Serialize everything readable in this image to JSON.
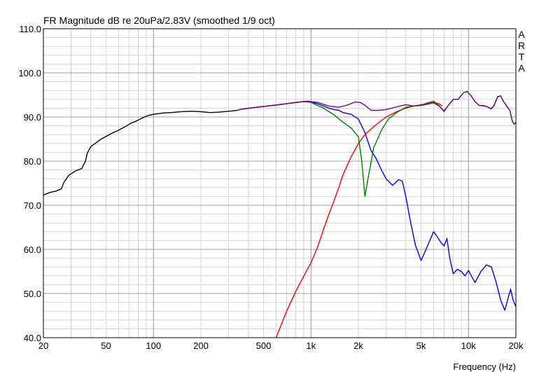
{
  "chart_data": {
    "type": "line",
    "title": "FR Magnitude dB re 20uPa/2.83V (smoothed 1/9 oct)",
    "watermark": [
      "A",
      "R",
      "T",
      "A"
    ],
    "xlabel": "Frequency (Hz)",
    "ylabel": "",
    "x_scale": "log",
    "xlim": [
      20,
      20000
    ],
    "ylim": [
      40,
      110
    ],
    "grid": true,
    "x_ticks": [
      {
        "value": 20,
        "label": "20"
      },
      {
        "value": 50,
        "label": "50"
      },
      {
        "value": 100,
        "label": "100"
      },
      {
        "value": 200,
        "label": "200"
      },
      {
        "value": 500,
        "label": "500"
      },
      {
        "value": 1000,
        "label": "1k"
      },
      {
        "value": 2000,
        "label": "2k"
      },
      {
        "value": 5000,
        "label": "5k"
      },
      {
        "value": 10000,
        "label": "10k"
      },
      {
        "value": 20000,
        "label": "20k"
      }
    ],
    "y_ticks": [
      {
        "value": 40,
        "label": "40.0"
      },
      {
        "value": 50,
        "label": "50.0"
      },
      {
        "value": 60,
        "label": "60.0"
      },
      {
        "value": 70,
        "label": "70.0"
      },
      {
        "value": 80,
        "label": "80.0"
      },
      {
        "value": 90,
        "label": "90.0"
      },
      {
        "value": 100,
        "label": "100.0"
      },
      {
        "value": 110,
        "label": "110.0"
      }
    ],
    "series": [
      {
        "color": "#000000",
        "points": [
          [
            20,
            72.3
          ],
          [
            22,
            72.9
          ],
          [
            24,
            73.2
          ],
          [
            26,
            73.7
          ],
          [
            27,
            75.2
          ],
          [
            29,
            76.8
          ],
          [
            32,
            77.8
          ],
          [
            35,
            78.3
          ],
          [
            37,
            80.0
          ],
          [
            38,
            81.8
          ],
          [
            40,
            83.3
          ],
          [
            43,
            84.1
          ],
          [
            46,
            84.9
          ],
          [
            50,
            85.6
          ],
          [
            55,
            86.4
          ],
          [
            60,
            87.0
          ],
          [
            66,
            87.8
          ],
          [
            72,
            88.6
          ],
          [
            78,
            89.1
          ],
          [
            85,
            89.8
          ],
          [
            92,
            90.3
          ],
          [
            100,
            90.6
          ],
          [
            115,
            90.9
          ],
          [
            130,
            91.0
          ],
          [
            150,
            91.2
          ],
          [
            175,
            91.3
          ],
          [
            200,
            91.2
          ],
          [
            230,
            91.0
          ],
          [
            260,
            91.1
          ],
          [
            300,
            91.3
          ],
          [
            340,
            91.5
          ],
          [
            350,
            91.6
          ]
        ]
      },
      {
        "color": "#0000ff",
        "points": [
          [
            350,
            91.7
          ],
          [
            400,
            92.0
          ],
          [
            500,
            92.4
          ],
          [
            600,
            92.7
          ],
          [
            700,
            93.0
          ],
          [
            800,
            93.3
          ],
          [
            900,
            93.5
          ],
          [
            1000,
            93.4
          ],
          [
            1100,
            93.0
          ],
          [
            1200,
            92.5
          ],
          [
            1300,
            92.0
          ],
          [
            1400,
            91.7
          ],
          [
            1500,
            91.5
          ],
          [
            1600,
            91.0
          ],
          [
            1800,
            90.6
          ],
          [
            2000,
            89.5
          ],
          [
            2200,
            86.5
          ],
          [
            2400,
            82.5
          ],
          [
            2600,
            80.5
          ],
          [
            2800,
            78.0
          ],
          [
            3000,
            76.0
          ],
          [
            3300,
            74.5
          ],
          [
            3600,
            75.8
          ],
          [
            3800,
            75.5
          ],
          [
            4000,
            72.0
          ],
          [
            4300,
            66.0
          ],
          [
            4600,
            61.0
          ],
          [
            5000,
            57.5
          ],
          [
            5300,
            59.5
          ],
          [
            5600,
            61.5
          ],
          [
            6000,
            64.0
          ],
          [
            6300,
            63.0
          ],
          [
            6700,
            61.5
          ],
          [
            7000,
            60.8
          ],
          [
            7300,
            62.5
          ],
          [
            7600,
            58.0
          ],
          [
            8000,
            54.5
          ],
          [
            8500,
            55.5
          ],
          [
            9000,
            55.0
          ],
          [
            9500,
            54.0
          ],
          [
            10000,
            55.2
          ],
          [
            11000,
            52.5
          ],
          [
            12000,
            55.0
          ],
          [
            13000,
            56.5
          ],
          [
            14000,
            56.0
          ],
          [
            15000,
            52.5
          ],
          [
            16000,
            48.5
          ],
          [
            17000,
            46.2
          ],
          [
            17700,
            48.5
          ],
          [
            18500,
            51.0
          ],
          [
            19200,
            48.5
          ],
          [
            20000,
            47.0
          ]
        ]
      },
      {
        "color": "#ff0000",
        "points": [
          [
            600,
            40.0
          ],
          [
            700,
            46.0
          ],
          [
            800,
            50.5
          ],
          [
            900,
            54.0
          ],
          [
            1000,
            57.0
          ],
          [
            1100,
            60.5
          ],
          [
            1200,
            64.5
          ],
          [
            1300,
            68.0
          ],
          [
            1400,
            71.0
          ],
          [
            1500,
            74.0
          ],
          [
            1600,
            77.0
          ],
          [
            1800,
            81.0
          ],
          [
            2000,
            84.0
          ],
          [
            2200,
            86.0
          ],
          [
            2500,
            87.8
          ],
          [
            2800,
            89.2
          ],
          [
            3000,
            90.0
          ],
          [
            3500,
            91.2
          ],
          [
            4000,
            92.0
          ],
          [
            4500,
            92.5
          ],
          [
            5000,
            92.8
          ],
          [
            5500,
            93.0
          ],
          [
            6000,
            93.3
          ],
          [
            6500,
            93.0
          ],
          [
            6800,
            92.5
          ]
        ]
      },
      {
        "color": "#008000",
        "points": [
          [
            350,
            91.7
          ],
          [
            500,
            92.4
          ],
          [
            700,
            93.0
          ],
          [
            900,
            93.5
          ],
          [
            1000,
            93.3
          ],
          [
            1200,
            92.0
          ],
          [
            1400,
            90.5
          ],
          [
            1600,
            88.8
          ],
          [
            1800,
            87.5
          ],
          [
            2000,
            85.5
          ],
          [
            2100,
            80.0
          ],
          [
            2200,
            72.0
          ],
          [
            2300,
            76.0
          ],
          [
            2500,
            83.0
          ],
          [
            2800,
            87.0
          ],
          [
            3100,
            89.5
          ],
          [
            3500,
            91.0
          ],
          [
            4000,
            92.2
          ],
          [
            5000,
            92.7
          ],
          [
            5500,
            93.2
          ],
          [
            6000,
            93.6
          ],
          [
            6500,
            92.6
          ],
          [
            7000,
            91.2
          ],
          [
            7400,
            92.5
          ],
          [
            8000,
            94.0
          ],
          [
            8600,
            94.0
          ],
          [
            9300,
            95.5
          ],
          [
            9800,
            95.8
          ],
          [
            10400,
            94.8
          ],
          [
            11000,
            93.5
          ],
          [
            11700,
            92.6
          ],
          [
            12500,
            92.5
          ],
          [
            13200,
            92.3
          ],
          [
            13900,
            91.8
          ],
          [
            14500,
            92.5
          ],
          [
            15300,
            94.5
          ],
          [
            16000,
            94.8
          ],
          [
            16700,
            93.5
          ],
          [
            17500,
            92.4
          ],
          [
            18300,
            91.5
          ],
          [
            19000,
            89.0
          ],
          [
            19500,
            88.4
          ],
          [
            20000,
            88.6
          ]
        ]
      },
      {
        "color": "#800080",
        "points": [
          [
            350,
            91.7
          ],
          [
            450,
            92.2
          ],
          [
            600,
            92.7
          ],
          [
            800,
            93.3
          ],
          [
            950,
            93.6
          ],
          [
            1100,
            93.3
          ],
          [
            1300,
            92.5
          ],
          [
            1500,
            92.2
          ],
          [
            1700,
            92.7
          ],
          [
            1900,
            93.4
          ],
          [
            2050,
            93.3
          ],
          [
            2200,
            92.7
          ],
          [
            2400,
            91.5
          ],
          [
            2700,
            91.5
          ],
          [
            3000,
            91.7
          ],
          [
            3500,
            92.3
          ],
          [
            4000,
            92.8
          ],
          [
            4500,
            92.5
          ],
          [
            5000,
            92.6
          ],
          [
            5500,
            92.9
          ],
          [
            6000,
            93.2
          ],
          [
            6500,
            92.5
          ],
          [
            7000,
            91.4
          ],
          [
            7400,
            92.5
          ],
          [
            8000,
            94.0
          ],
          [
            8600,
            94.0
          ],
          [
            9300,
            95.5
          ],
          [
            9800,
            95.8
          ],
          [
            10400,
            94.8
          ],
          [
            11000,
            93.5
          ],
          [
            11700,
            92.6
          ],
          [
            12500,
            92.6
          ],
          [
            13200,
            92.3
          ],
          [
            13900,
            91.9
          ],
          [
            14500,
            92.6
          ],
          [
            15300,
            94.6
          ],
          [
            16000,
            94.8
          ],
          [
            16700,
            93.5
          ],
          [
            17500,
            92.5
          ],
          [
            18300,
            91.5
          ],
          [
            19000,
            89.0
          ],
          [
            19500,
            88.4
          ],
          [
            20000,
            88.7
          ]
        ]
      }
    ]
  }
}
